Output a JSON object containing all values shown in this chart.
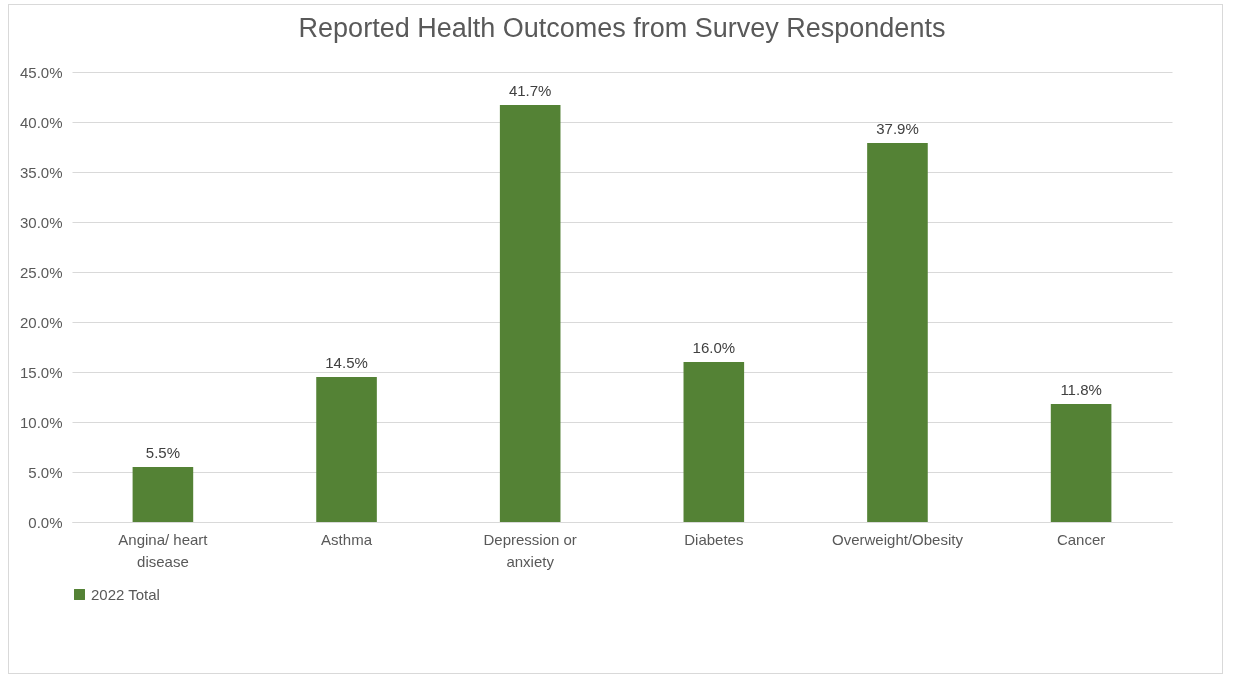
{
  "chart_data": {
    "type": "bar",
    "title": "Reported Health Outcomes from Survey Respondents",
    "categories": [
      "Angina/ heart disease",
      "Asthma",
      "Depression or anxiety",
      "Diabetes",
      "Overweight/Obesity",
      "Cancer"
    ],
    "series": [
      {
        "name": "2022 Total",
        "color": "#548235",
        "values": [
          5.5,
          14.5,
          41.7,
          16.0,
          37.9,
          11.8
        ],
        "value_labels": [
          "5.5%",
          "14.5%",
          "41.7%",
          "16.0%",
          "37.9%",
          "11.8%"
        ]
      }
    ],
    "ylim": [
      0,
      45
    ],
    "yticks": [
      {
        "value": 0,
        "label": "0.0%"
      },
      {
        "value": 5,
        "label": "5.0%"
      },
      {
        "value": 10,
        "label": "10.0%"
      },
      {
        "value": 15,
        "label": "15.0%"
      },
      {
        "value": 20,
        "label": "20.0%"
      },
      {
        "value": 25,
        "label": "25.0%"
      },
      {
        "value": 30,
        "label": "30.0%"
      },
      {
        "value": 35,
        "label": "35.0%"
      },
      {
        "value": 40,
        "label": "40.0%"
      },
      {
        "value": 45,
        "label": "45.0%"
      }
    ],
    "grid": "y",
    "legend": "bottom"
  }
}
